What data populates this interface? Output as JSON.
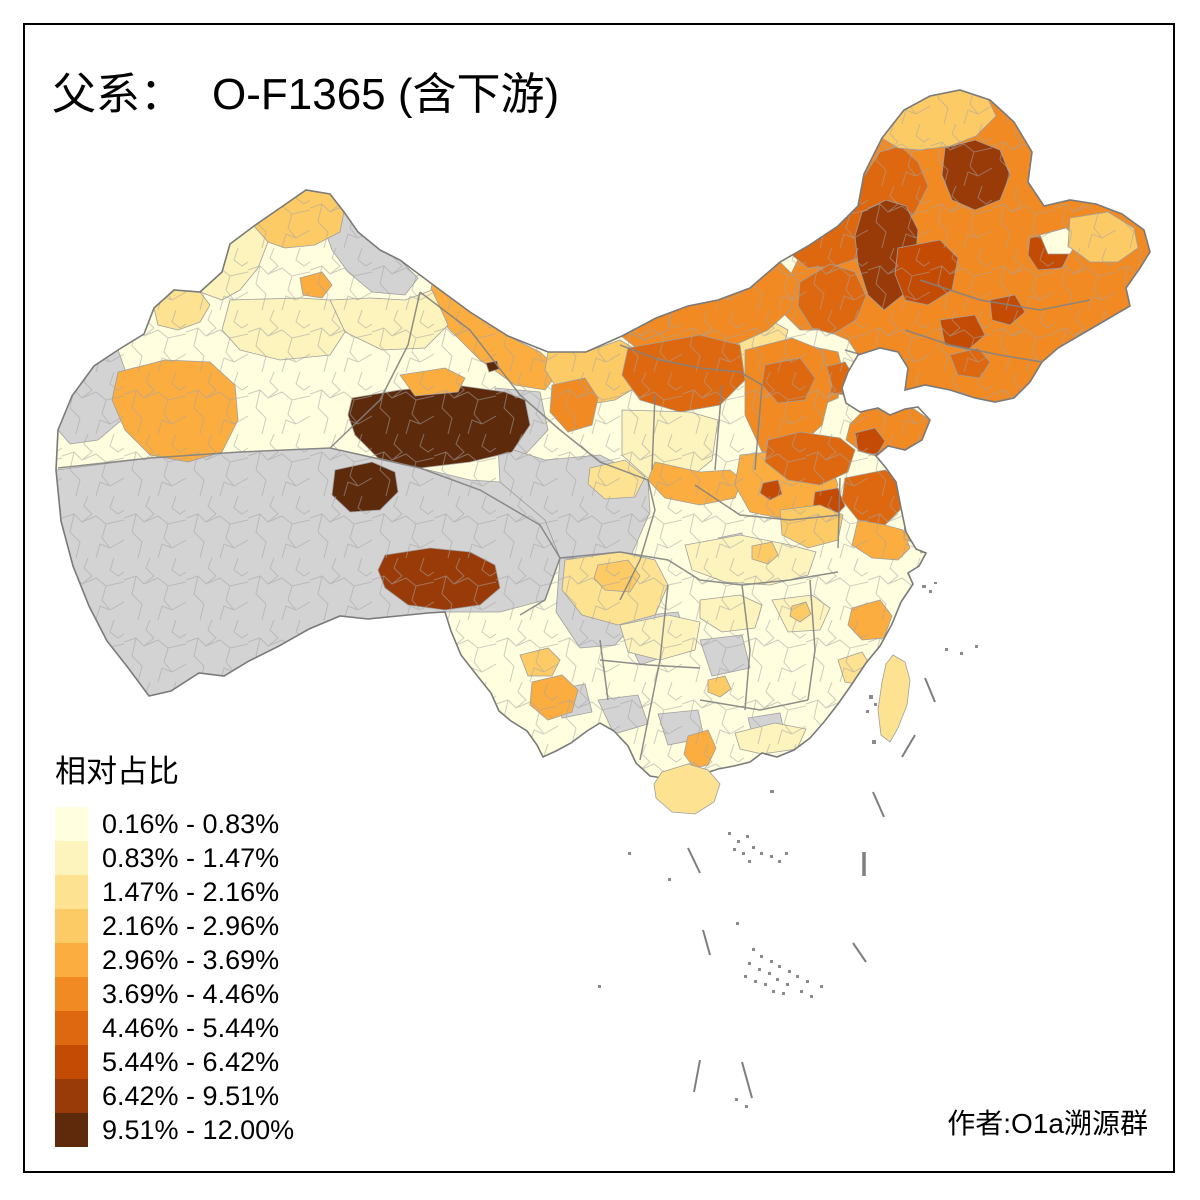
{
  "title": {
    "prefix": "父系：",
    "name": "O-F1365 (含下游)"
  },
  "legend": {
    "title": "相对占比",
    "classes": [
      {
        "label": "0.16% - 0.83%",
        "color": "#FFFEDE"
      },
      {
        "label": "0.83% - 1.47%",
        "color": "#FDF3BC"
      },
      {
        "label": "1.47% - 2.16%",
        "color": "#FDE391"
      },
      {
        "label": "2.16% - 2.96%",
        "color": "#FDCB66"
      },
      {
        "label": "2.96% - 3.69%",
        "color": "#FCAD40"
      },
      {
        "label": "3.69% - 4.46%",
        "color": "#F18A22"
      },
      {
        "label": "4.46% - 5.44%",
        "color": "#DD6810"
      },
      {
        "label": "5.44% - 6.42%",
        "color": "#C44B04"
      },
      {
        "label": "6.42% - 9.51%",
        "color": "#993B08"
      },
      {
        "label": "9.51% - 12.00%",
        "color": "#5E2A0C"
      }
    ]
  },
  "attribution": "作者:O1a溯源群",
  "map": {
    "no_data_color": "#D3D3D3",
    "land_border_color": "#7A7A7A",
    "province_border_color": "#828282",
    "prefecture_border_color": "#A3A3A3",
    "sea_mark_color": "#7E7E7E",
    "frame_color": "#000000",
    "background": "#FFFFFF"
  }
}
